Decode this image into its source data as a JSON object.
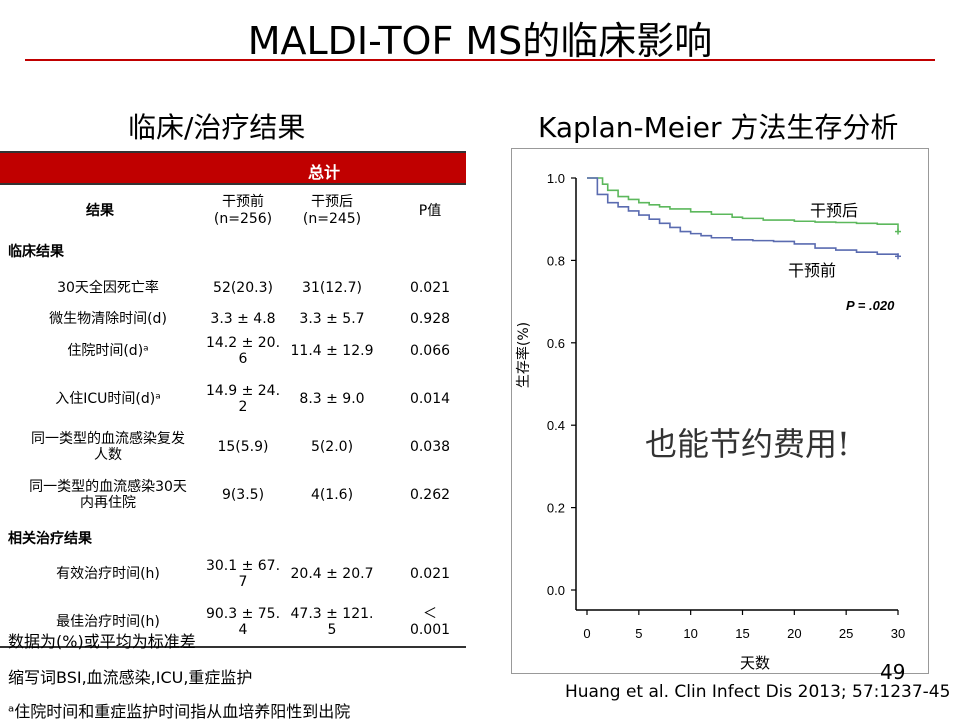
{
  "slide": {
    "title": "MALDI-TOF MS的临床影响",
    "left_subtitle": "临床/治疗结果",
    "right_subtitle": "Kaplan-Meier 方法生存分析",
    "page_number": "49",
    "citation": "Huang et al. Clin Infect Dis 2013; 57:1237-45"
  },
  "table": {
    "group_header": "总计",
    "columns": {
      "outcome": "结果",
      "before": "干预前",
      "before_n": "(n=256)",
      "after": "干预后",
      "after_n": "(n=245)",
      "p": "P值"
    },
    "sections": [
      {
        "title": "临床结果",
        "rows": [
          {
            "label": [
              "30天全因死亡率"
            ],
            "before": [
              "52(20.3)"
            ],
            "after": [
              "31(12.7)"
            ],
            "p": [
              "0.021"
            ]
          },
          {
            "label": [
              "微生物清除时间(d)"
            ],
            "before": [
              "3.3 ± 4.8"
            ],
            "after": [
              "3.3 ± 5.7"
            ],
            "p": [
              "0.928"
            ]
          },
          {
            "label": [
              "住院时间(d)ᵃ"
            ],
            "before": [
              "14.2 ± 20.",
              "6"
            ],
            "after": [
              "11.4 ± 12.9"
            ],
            "p": [
              "0.066"
            ]
          },
          {
            "label": [
              "入住ICU时间(d)ᵃ"
            ],
            "before": [
              "14.9 ± 24.",
              "2"
            ],
            "after": [
              "8.3 ± 9.0"
            ],
            "p": [
              "0.014"
            ]
          },
          {
            "label": [
              "同一类型的血流感染复发",
              "人数"
            ],
            "before": [
              "15(5.9)"
            ],
            "after": [
              "5(2.0)"
            ],
            "p": [
              "0.038"
            ]
          },
          {
            "label": [
              "同一类型的血流感染30天",
              "内再住院"
            ],
            "before": [
              "9(3.5)"
            ],
            "after": [
              "4(1.6)"
            ],
            "p": [
              "0.262"
            ]
          }
        ]
      },
      {
        "title": "相关治疗结果",
        "rows": [
          {
            "label": [
              "有效治疗时间(h)"
            ],
            "before": [
              "30.1 ± 67.",
              "7"
            ],
            "after": [
              "20.4 ± 20.7"
            ],
            "p": [
              "0.021"
            ]
          },
          {
            "label": [
              "最佳治疗时间(h)"
            ],
            "before": [
              "90.3 ± 75.",
              "4"
            ],
            "after": [
              "47.3 ± 121.",
              "5"
            ],
            "p": [
              "＜",
              "0.001"
            ]
          }
        ]
      }
    ]
  },
  "footnotes": [
    "数据为(%)或平均为标准差",
    "缩写词BSI,血流感染,ICU,重症监护",
    "ᵃ住院时间和重症监护时间指从血培养阳性到出院"
  ],
  "chart_data": {
    "type": "line",
    "xlabel": "天数",
    "ylabel": "生存率(%)",
    "xlim": [
      0,
      30
    ],
    "ylim": [
      0,
      1.0
    ],
    "x_ticks": [
      "0",
      "5",
      "10",
      "15",
      "20",
      "25",
      "30"
    ],
    "y_ticks": [
      "0.0",
      "0.2",
      "0.4",
      "0.6",
      "0.8",
      "1.0"
    ],
    "annotation": "P = .020",
    "overlay_text": "也能节约费用!",
    "series": [
      {
        "name": "干预后",
        "color": "#5cb85c",
        "x": [
          0,
          1,
          1.5,
          2,
          3,
          4,
          5,
          6,
          7,
          8,
          10,
          12,
          14,
          15,
          17,
          20,
          22,
          24,
          26,
          28,
          30
        ],
        "y": [
          1.0,
          1.0,
          0.985,
          0.97,
          0.955,
          0.948,
          0.94,
          0.935,
          0.93,
          0.925,
          0.918,
          0.912,
          0.905,
          0.902,
          0.898,
          0.895,
          0.893,
          0.892,
          0.89,
          0.888,
          0.87
        ]
      },
      {
        "name": "干预前",
        "color": "#5a6bb0",
        "x": [
          0,
          0.5,
          1,
          2,
          3,
          4,
          5,
          6,
          7,
          8,
          9,
          10,
          11,
          12,
          14,
          16,
          18,
          20,
          22,
          24,
          26,
          28,
          30
        ],
        "y": [
          1.0,
          1.0,
          0.96,
          0.94,
          0.93,
          0.92,
          0.91,
          0.9,
          0.89,
          0.88,
          0.87,
          0.865,
          0.86,
          0.855,
          0.85,
          0.848,
          0.846,
          0.84,
          0.83,
          0.825,
          0.82,
          0.815,
          0.81
        ]
      }
    ]
  }
}
